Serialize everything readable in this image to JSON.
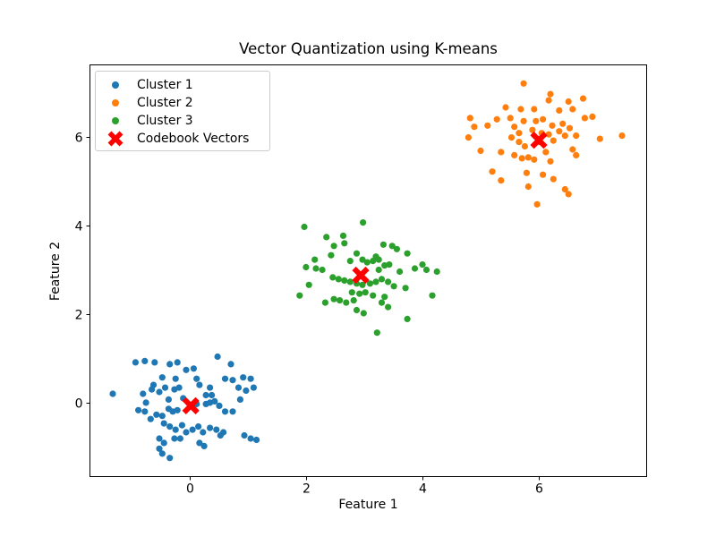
{
  "figure": {
    "title": "Vector Quantization using K-means",
    "xlabel": "Feature 1",
    "ylabel": "Feature 2",
    "background": "#ffffff"
  },
  "axes": {
    "xlim": [
      -1.72,
      7.86
    ],
    "ylim": [
      -1.68,
      7.64
    ],
    "xticks": [
      0,
      2,
      4,
      6
    ],
    "yticks": [
      0,
      2,
      4,
      6
    ],
    "frame_color": "#000000",
    "tick_label_color": "#000000",
    "grid": false
  },
  "legend": {
    "position": "upper-left",
    "entries": [
      {
        "marker": "dot",
        "color": "#1f77b4"
      },
      {
        "marker": "dot",
        "color": "#ff7f0e"
      },
      {
        "marker": "dot",
        "color": "#2ca02c"
      },
      {
        "marker": "X",
        "color": "#ff0000"
      }
    ]
  },
  "chart_data": {
    "type": "scatter",
    "title": "Vector Quantization using K-means",
    "xlabel": "Feature 1",
    "ylabel": "Feature 2",
    "xlim": [
      -1.72,
      7.86
    ],
    "ylim": [
      -1.68,
      7.64
    ],
    "legend_position": "upper-left",
    "grid": false,
    "series": [
      {
        "name": "Cluster 1",
        "color": "#1f77b4",
        "marker": "circle",
        "points": [
          [
            -0.93,
            0.91
          ],
          [
            -0.77,
            0.94
          ],
          [
            -0.6,
            0.91
          ],
          [
            -0.34,
            0.87
          ],
          [
            -0.21,
            0.91
          ],
          [
            -0.06,
            0.74
          ],
          [
            0.07,
            0.77
          ],
          [
            0.12,
            0.54
          ],
          [
            -0.24,
            0.54
          ],
          [
            -0.47,
            0.57
          ],
          [
            -0.62,
            0.4
          ],
          [
            -0.8,
            0.2
          ],
          [
            -1.32,
            0.2
          ],
          [
            -0.88,
            -0.17
          ],
          [
            -0.75,
            0.0
          ],
          [
            -0.65,
            0.3
          ],
          [
            -0.52,
            0.24
          ],
          [
            -0.42,
            0.34
          ],
          [
            -0.36,
            0.07
          ],
          [
            -0.26,
            0.3
          ],
          [
            -0.18,
            0.34
          ],
          [
            -0.11,
            0.1
          ],
          [
            0.35,
            0.34
          ],
          [
            0.48,
            1.04
          ],
          [
            0.71,
            0.87
          ],
          [
            0.61,
            0.54
          ],
          [
            0.74,
            0.51
          ],
          [
            0.92,
            0.57
          ],
          [
            1.05,
            0.54
          ],
          [
            0.84,
            0.34
          ],
          [
            0.97,
            0.27
          ],
          [
            1.1,
            0.34
          ],
          [
            0.87,
            0.07
          ],
          [
            0.38,
            0.17
          ],
          [
            0.28,
            0.17
          ],
          [
            0.17,
            0.4
          ],
          [
            0.12,
            -0.03
          ],
          [
            0.28,
            -0.03
          ],
          [
            0.35,
            0.0
          ],
          [
            0.43,
            0.03
          ],
          [
            0.51,
            -0.07
          ],
          [
            0.61,
            -0.2
          ],
          [
            0.74,
            -0.2
          ],
          [
            -0.77,
            -0.2
          ],
          [
            -0.67,
            -0.37
          ],
          [
            -0.57,
            -0.27
          ],
          [
            -0.47,
            -0.3
          ],
          [
            -0.36,
            -0.14
          ],
          [
            -0.29,
            -0.2
          ],
          [
            -0.21,
            -0.17
          ],
          [
            -0.44,
            -0.47
          ],
          [
            -0.34,
            -0.54
          ],
          [
            -0.24,
            -0.61
          ],
          [
            -0.13,
            -0.51
          ],
          [
            -0.06,
            -0.67
          ],
          [
            0.05,
            -0.61
          ],
          [
            0.15,
            -0.54
          ],
          [
            0.23,
            -0.67
          ],
          [
            0.35,
            -0.57
          ],
          [
            0.46,
            -0.61
          ],
          [
            0.53,
            -0.74
          ],
          [
            0.94,
            -0.74
          ],
          [
            1.05,
            -0.81
          ],
          [
            1.15,
            -0.84
          ],
          [
            -0.52,
            -0.81
          ],
          [
            -0.44,
            -0.91
          ],
          [
            -0.52,
            -1.04
          ],
          [
            -0.47,
            -1.15
          ],
          [
            -0.34,
            -1.25
          ],
          [
            -0.26,
            -0.81
          ],
          [
            -0.16,
            -0.81
          ],
          [
            0.17,
            -0.91
          ],
          [
            0.25,
            -0.98
          ],
          [
            0.58,
            -0.67
          ]
        ]
      },
      {
        "name": "Cluster 2",
        "color": "#ff7f0e",
        "marker": "circle",
        "points": [
          [
            5.74,
            7.21
          ],
          [
            6.2,
            6.97
          ],
          [
            6.17,
            6.83
          ],
          [
            6.51,
            6.8
          ],
          [
            6.76,
            6.87
          ],
          [
            5.43,
            6.67
          ],
          [
            5.69,
            6.63
          ],
          [
            5.92,
            6.63
          ],
          [
            6.35,
            6.6
          ],
          [
            6.58,
            6.63
          ],
          [
            4.82,
            6.43
          ],
          [
            4.89,
            6.23
          ],
          [
            5.12,
            6.26
          ],
          [
            5.28,
            6.4
          ],
          [
            5.51,
            6.43
          ],
          [
            6.07,
            6.4
          ],
          [
            6.23,
            6.26
          ],
          [
            6.41,
            6.3
          ],
          [
            6.53,
            6.2
          ],
          [
            6.79,
            6.43
          ],
          [
            6.92,
            6.46
          ],
          [
            4.79,
            5.99
          ],
          [
            5.0,
            5.69
          ],
          [
            5.35,
            5.66
          ],
          [
            5.53,
            5.99
          ],
          [
            5.66,
            5.89
          ],
          [
            5.76,
            5.79
          ],
          [
            5.89,
            6.16
          ],
          [
            6.17,
            6.06
          ],
          [
            6.25,
            5.92
          ],
          [
            6.35,
            6.13
          ],
          [
            6.45,
            6.03
          ],
          [
            6.64,
            6.03
          ],
          [
            7.05,
            5.96
          ],
          [
            7.43,
            6.03
          ],
          [
            5.58,
            5.59
          ],
          [
            5.71,
            5.52
          ],
          [
            5.82,
            5.54
          ],
          [
            5.92,
            5.49
          ],
          [
            6.12,
            5.66
          ],
          [
            6.2,
            5.45
          ],
          [
            6.58,
            5.72
          ],
          [
            6.64,
            5.59
          ],
          [
            5.2,
            5.22
          ],
          [
            5.35,
            5.02
          ],
          [
            5.79,
            5.19
          ],
          [
            6.07,
            5.15
          ],
          [
            6.25,
            5.05
          ],
          [
            5.82,
            4.88
          ],
          [
            6.45,
            4.82
          ],
          [
            6.51,
            4.71
          ],
          [
            5.97,
            4.48
          ],
          [
            5.66,
            6.09
          ],
          [
            6.0,
            5.89
          ],
          [
            6.05,
            6.09
          ],
          [
            5.95,
            6.36
          ],
          [
            5.74,
            6.36
          ],
          [
            5.58,
            6.23
          ]
        ]
      },
      {
        "name": "Cluster 3",
        "color": "#2ca02c",
        "marker": "circle",
        "points": [
          [
            2.98,
            4.07
          ],
          [
            1.97,
            3.97
          ],
          [
            2.35,
            3.74
          ],
          [
            2.64,
            3.77
          ],
          [
            2.66,
            3.6
          ],
          [
            2.48,
            3.54
          ],
          [
            3.33,
            3.57
          ],
          [
            3.48,
            3.54
          ],
          [
            3.56,
            3.47
          ],
          [
            3.74,
            3.37
          ],
          [
            3.2,
            3.3
          ],
          [
            3.25,
            3.23
          ],
          [
            2.87,
            3.37
          ],
          [
            2.76,
            3.2
          ],
          [
            2.43,
            3.33
          ],
          [
            2.15,
            3.23
          ],
          [
            2.0,
            3.06
          ],
          [
            2.17,
            3.03
          ],
          [
            2.28,
            3.0
          ],
          [
            2.97,
            3.23
          ],
          [
            3.05,
            3.17
          ],
          [
            3.15,
            3.2
          ],
          [
            3.25,
            3.0
          ],
          [
            3.35,
            3.1
          ],
          [
            3.43,
            3.12
          ],
          [
            3.61,
            2.96
          ],
          [
            3.87,
            3.03
          ],
          [
            4.0,
            3.12
          ],
          [
            4.07,
            3.0
          ],
          [
            4.25,
            2.96
          ],
          [
            2.46,
            2.83
          ],
          [
            2.56,
            2.79
          ],
          [
            2.66,
            2.76
          ],
          [
            2.76,
            2.73
          ],
          [
            2.87,
            2.69
          ],
          [
            2.97,
            2.66
          ],
          [
            3.1,
            2.69
          ],
          [
            3.2,
            2.73
          ],
          [
            3.3,
            2.79
          ],
          [
            3.41,
            2.73
          ],
          [
            3.51,
            2.63
          ],
          [
            3.71,
            2.59
          ],
          [
            1.89,
            2.42
          ],
          [
            2.05,
            2.66
          ],
          [
            2.33,
            2.26
          ],
          [
            2.48,
            2.34
          ],
          [
            2.58,
            2.31
          ],
          [
            2.69,
            2.26
          ],
          [
            2.82,
            2.31
          ],
          [
            2.92,
            2.46
          ],
          [
            3.02,
            2.49
          ],
          [
            3.15,
            2.42
          ],
          [
            3.35,
            2.39
          ],
          [
            4.17,
            2.42
          ],
          [
            2.87,
            2.09
          ],
          [
            2.99,
            2.02
          ],
          [
            3.3,
            2.26
          ],
          [
            3.41,
            2.16
          ],
          [
            3.74,
            1.89
          ],
          [
            3.22,
            1.58
          ],
          [
            2.79,
            2.49
          ]
        ]
      },
      {
        "name": "Codebook Vectors",
        "color": "#ff0000",
        "marker": "X",
        "points": [
          [
            0.02,
            -0.07
          ],
          [
            6.0,
            5.93
          ],
          [
            2.94,
            2.88
          ]
        ]
      }
    ]
  }
}
